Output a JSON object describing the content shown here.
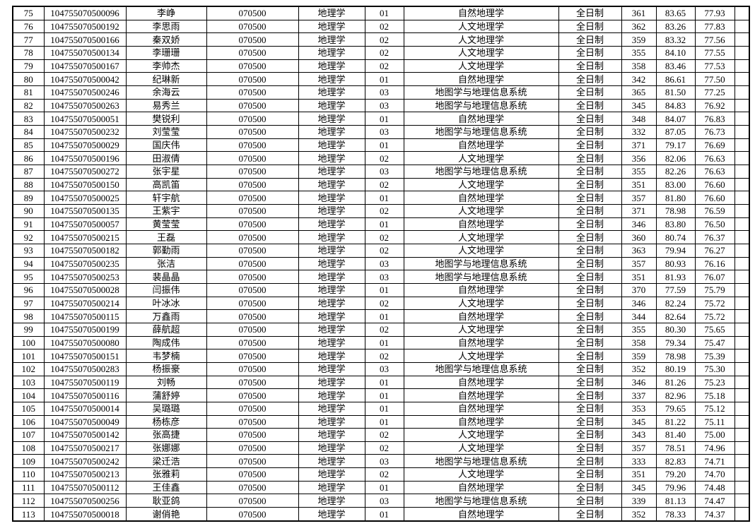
{
  "colors": {
    "background": "#ffffff",
    "border": "#000000",
    "text": "#000000"
  },
  "table": {
    "rows": [
      [
        "75",
        "104755070500096",
        "李峥",
        "070500",
        "地理学",
        "01",
        "自然地理学",
        "全日制",
        "361",
        "83.65",
        "77.93"
      ],
      [
        "76",
        "104755070500192",
        "李思雨",
        "070500",
        "地理学",
        "02",
        "人文地理学",
        "全日制",
        "362",
        "83.26",
        "77.83"
      ],
      [
        "77",
        "104755070500166",
        "秦双娇",
        "070500",
        "地理学",
        "02",
        "人文地理学",
        "全日制",
        "359",
        "83.32",
        "77.56"
      ],
      [
        "78",
        "104755070500134",
        "李珊珊",
        "070500",
        "地理学",
        "02",
        "人文地理学",
        "全日制",
        "355",
        "84.10",
        "77.55"
      ],
      [
        "79",
        "104755070500167",
        "李帅杰",
        "070500",
        "地理学",
        "02",
        "人文地理学",
        "全日制",
        "358",
        "83.46",
        "77.53"
      ],
      [
        "80",
        "104755070500042",
        "纪琳新",
        "070500",
        "地理学",
        "01",
        "自然地理学",
        "全日制",
        "342",
        "86.61",
        "77.50"
      ],
      [
        "81",
        "104755070500246",
        "余海云",
        "070500",
        "地理学",
        "03",
        "地图学与地理信息系统",
        "全日制",
        "365",
        "81.50",
        "77.25"
      ],
      [
        "82",
        "104755070500263",
        "易秀兰",
        "070500",
        "地理学",
        "03",
        "地图学与地理信息系统",
        "全日制",
        "345",
        "84.83",
        "76.92"
      ],
      [
        "83",
        "104755070500051",
        "樊锐利",
        "070500",
        "地理学",
        "01",
        "自然地理学",
        "全日制",
        "348",
        "84.07",
        "76.83"
      ],
      [
        "84",
        "104755070500232",
        "刘莹莹",
        "070500",
        "地理学",
        "03",
        "地图学与地理信息系统",
        "全日制",
        "332",
        "87.05",
        "76.73"
      ],
      [
        "85",
        "104755070500029",
        "国庆伟",
        "070500",
        "地理学",
        "01",
        "自然地理学",
        "全日制",
        "371",
        "79.17",
        "76.69"
      ],
      [
        "86",
        "104755070500196",
        "田淑倩",
        "070500",
        "地理学",
        "02",
        "人文地理学",
        "全日制",
        "356",
        "82.06",
        "76.63"
      ],
      [
        "87",
        "104755070500272",
        "张宇星",
        "070500",
        "地理学",
        "03",
        "地图学与地理信息系统",
        "全日制",
        "355",
        "82.26",
        "76.63"
      ],
      [
        "88",
        "104755070500150",
        "高凯笛",
        "070500",
        "地理学",
        "02",
        "人文地理学",
        "全日制",
        "351",
        "83.00",
        "76.60"
      ],
      [
        "89",
        "104755070500025",
        "轩宇航",
        "070500",
        "地理学",
        "01",
        "自然地理学",
        "全日制",
        "357",
        "81.80",
        "76.60"
      ],
      [
        "90",
        "104755070500135",
        "王紫宇",
        "070500",
        "地理学",
        "02",
        "人文地理学",
        "全日制",
        "371",
        "78.98",
        "76.59"
      ],
      [
        "91",
        "104755070500057",
        "黄莹莹",
        "070500",
        "地理学",
        "01",
        "自然地理学",
        "全日制",
        "346",
        "83.80",
        "76.50"
      ],
      [
        "92",
        "104755070500215",
        "王磊",
        "070500",
        "地理学",
        "02",
        "人文地理学",
        "全日制",
        "360",
        "80.74",
        "76.37"
      ],
      [
        "93",
        "104755070500182",
        "郭勤雨",
        "070500",
        "地理学",
        "02",
        "人文地理学",
        "全日制",
        "363",
        "79.94",
        "76.27"
      ],
      [
        "94",
        "104755070500235",
        "张洁",
        "070500",
        "地理学",
        "03",
        "地图学与地理信息系统",
        "全日制",
        "357",
        "80.93",
        "76.16"
      ],
      [
        "95",
        "104755070500253",
        "裴晶晶",
        "070500",
        "地理学",
        "03",
        "地图学与地理信息系统",
        "全日制",
        "351",
        "81.93",
        "76.07"
      ],
      [
        "96",
        "104755070500028",
        "闫振伟",
        "070500",
        "地理学",
        "01",
        "自然地理学",
        "全日制",
        "370",
        "77.59",
        "75.79"
      ],
      [
        "97",
        "104755070500214",
        "叶冰冰",
        "070500",
        "地理学",
        "02",
        "人文地理学",
        "全日制",
        "346",
        "82.24",
        "75.72"
      ],
      [
        "98",
        "104755070500115",
        "万鑫雨",
        "070500",
        "地理学",
        "01",
        "自然地理学",
        "全日制",
        "344",
        "82.64",
        "75.72"
      ],
      [
        "99",
        "104755070500199",
        "薛航超",
        "070500",
        "地理学",
        "02",
        "人文地理学",
        "全日制",
        "355",
        "80.30",
        "75.65"
      ],
      [
        "100",
        "104755070500080",
        "陶成伟",
        "070500",
        "地理学",
        "01",
        "自然地理学",
        "全日制",
        "358",
        "79.34",
        "75.47"
      ],
      [
        "101",
        "104755070500151",
        "韦梦楠",
        "070500",
        "地理学",
        "02",
        "人文地理学",
        "全日制",
        "359",
        "78.98",
        "75.39"
      ],
      [
        "102",
        "104755070500283",
        "杨振豪",
        "070500",
        "地理学",
        "03",
        "地图学与地理信息系统",
        "全日制",
        "352",
        "80.19",
        "75.30"
      ],
      [
        "103",
        "104755070500119",
        "刘畅",
        "070500",
        "地理学",
        "01",
        "自然地理学",
        "全日制",
        "346",
        "81.26",
        "75.23"
      ],
      [
        "104",
        "104755070500116",
        "蒲舒婷",
        "070500",
        "地理学",
        "01",
        "自然地理学",
        "全日制",
        "337",
        "82.96",
        "75.18"
      ],
      [
        "105",
        "104755070500014",
        "吴璐璐",
        "070500",
        "地理学",
        "01",
        "自然地理学",
        "全日制",
        "353",
        "79.65",
        "75.12"
      ],
      [
        "106",
        "104755070500049",
        "杨栋彦",
        "070500",
        "地理学",
        "01",
        "自然地理学",
        "全日制",
        "345",
        "81.22",
        "75.11"
      ],
      [
        "107",
        "104755070500142",
        "张高捷",
        "070500",
        "地理学",
        "02",
        "人文地理学",
        "全日制",
        "343",
        "81.40",
        "75.00"
      ],
      [
        "108",
        "104755070500217",
        "张娜娜",
        "070500",
        "地理学",
        "02",
        "人文地理学",
        "全日制",
        "357",
        "78.51",
        "74.96"
      ],
      [
        "109",
        "104755070500242",
        "梁迁浩",
        "070500",
        "地理学",
        "03",
        "地图学与地理信息系统",
        "全日制",
        "333",
        "82.83",
        "74.71"
      ],
      [
        "110",
        "104755070500213",
        "张雅莉",
        "070500",
        "地理学",
        "02",
        "人文地理学",
        "全日制",
        "351",
        "79.20",
        "74.70"
      ],
      [
        "111",
        "104755070500112",
        "王佳鑫",
        "070500",
        "地理学",
        "01",
        "自然地理学",
        "全日制",
        "345",
        "79.96",
        "74.48"
      ],
      [
        "112",
        "104755070500256",
        "耿亚鸽",
        "070500",
        "地理学",
        "03",
        "地图学与地理信息系统",
        "全日制",
        "339",
        "81.13",
        "74.47"
      ],
      [
        "113",
        "104755070500018",
        "谢俏艳",
        "070500",
        "地理学",
        "01",
        "自然地理学",
        "全日制",
        "352",
        "78.33",
        "74.37"
      ]
    ]
  }
}
